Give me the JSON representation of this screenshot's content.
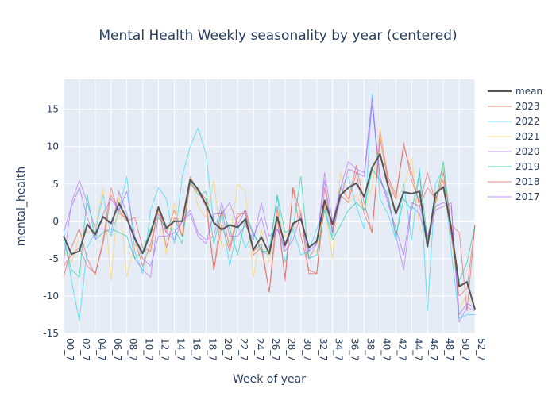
{
  "chart_data": {
    "type": "line",
    "title": "Mental Health Weekly seasonality by year (centered)",
    "xlabel": "Week of year",
    "ylabel": "mental_health",
    "ylim": [
      -15,
      19
    ],
    "yticks": [
      -15,
      -10,
      -5,
      0,
      5,
      10,
      15
    ],
    "x_tick_labels": [
      "00_7",
      "02_7",
      "04_7",
      "06_7",
      "08_7",
      "10_7",
      "12_7",
      "14_7",
      "16_7",
      "18_7",
      "20_7",
      "22_7",
      "24_7",
      "26_7",
      "28_7",
      "30_7",
      "32_7",
      "34_7",
      "36_7",
      "38_7",
      "40_7",
      "42_7",
      "44_7",
      "46_7",
      "48_7",
      "50_7",
      "52_7"
    ],
    "grid": true,
    "legend_position": "right",
    "plot_bgcolor": "#e5ecf6",
    "series": [
      {
        "name": "mean",
        "color": "#555555",
        "values": [
          -2.0,
          -4.4,
          -4.0,
          -0.4,
          -1.8,
          0.6,
          -0.3,
          2.4,
          0.4,
          -2.3,
          -4.3,
          -1.6,
          1.9,
          -0.9,
          0.0,
          0.0,
          5.6,
          4.3,
          2.3,
          -0.2,
          -1.1,
          -0.5,
          -0.8,
          0.3,
          -3.8,
          -2.1,
          -4.3,
          0.6,
          -3.2,
          -0.3,
          0.3,
          -3.5,
          -2.7,
          2.8,
          -0.4,
          3.5,
          4.5,
          5.1,
          3.3,
          7.2,
          9.0,
          4.8,
          1.0,
          3.9,
          3.7,
          4.0,
          -3.4,
          3.7,
          4.6,
          -0.9,
          -8.7,
          -8.1,
          -11.8
        ]
      },
      {
        "name": "2023",
        "color": "#ef553b",
        "values": [
          -7.5,
          -3.5,
          -1.0,
          -5.0,
          -7.2,
          -2.5,
          4.5,
          1.0,
          0.5,
          -2.5,
          -6.0,
          -3.0,
          1.5,
          -1.5,
          1.5,
          -2.0,
          6.0,
          4.0,
          3.0,
          -6.5,
          -0.5,
          -4.0,
          0.5,
          1.5,
          -4.0,
          -3.0,
          -9.5,
          0.5,
          -7.5,
          4.5,
          -2.0,
          -6.5,
          -7.0,
          4.5,
          -1.5,
          4.5,
          3.0,
          7.5,
          2.5,
          -1.5,
          12.0,
          6.0,
          3.5,
          10.0,
          6.5,
          2.0,
          4.5,
          3.0,
          5.5,
          -2.0,
          -10.0,
          -9.0,
          -0.5
        ]
      },
      {
        "name": "2022",
        "color": "#19d3f3",
        "values": [
          -1.0,
          -8.0,
          -13.3,
          -3.5,
          -1.5,
          3.5,
          -2.0,
          1.5,
          6.0,
          -4.0,
          -7.0,
          1.5,
          4.5,
          3.0,
          -3.0,
          6.0,
          10.0,
          12.5,
          9.0,
          -0.5,
          1.0,
          -6.0,
          -0.5,
          -3.5,
          -1.5,
          -4.0,
          -4.5,
          3.5,
          -5.5,
          -1.0,
          -4.5,
          -4.0,
          -1.0,
          2.0,
          -2.0,
          4.5,
          6.0,
          2.0,
          -1.0,
          17.0,
          3.0,
          1.0,
          -2.5,
          5.0,
          -2.5,
          7.0,
          -12.0,
          5.0,
          7.0,
          -4.0,
          -13.0,
          -12.5,
          -12.5
        ]
      },
      {
        "name": "2021",
        "color": "#fecb52",
        "values": [
          -4.0,
          -5.5,
          -2.0,
          -1.5,
          -1.0,
          4.5,
          -8.0,
          4.0,
          -7.5,
          -3.0,
          -5.0,
          -4.0,
          2.0,
          -4.5,
          2.5,
          -2.0,
          6.0,
          2.0,
          0.5,
          5.5,
          -3.5,
          -2.5,
          5.0,
          4.0,
          -7.5,
          -1.0,
          -5.5,
          1.5,
          -2.0,
          -1.5,
          1.5,
          -4.5,
          -4.0,
          2.0,
          -5.0,
          6.5,
          2.5,
          3.5,
          1.5,
          4.5,
          12.5,
          5.0,
          3.0,
          4.5,
          8.5,
          -1.0,
          -2.5,
          1.5,
          7.5,
          -1.0,
          -11.5,
          -10.0,
          -11.5
        ]
      },
      {
        "name": "2020",
        "color": "#ab63fa",
        "values": [
          -5.5,
          2.5,
          5.5,
          2.5,
          -1.0,
          -1.0,
          -1.5,
          4.0,
          1.0,
          -5.0,
          -6.5,
          -7.5,
          1.0,
          -1.5,
          -2.5,
          0.0,
          1.5,
          -1.5,
          -2.5,
          -2.0,
          2.5,
          -2.0,
          -2.0,
          -0.5,
          -2.5,
          2.5,
          -2.0,
          -1.0,
          -3.5,
          -0.5,
          0.5,
          -5.0,
          -3.0,
          6.5,
          0.0,
          4.5,
          8.0,
          7.0,
          6.5,
          16.5,
          5.5,
          3.0,
          -2.0,
          -6.5,
          2.0,
          1.0,
          -3.0,
          1.5,
          2.0,
          2.5,
          -13.5,
          -11.5,
          -12.0
        ]
      },
      {
        "name": "2019",
        "color": "#00cc96",
        "values": [
          -2.5,
          -6.5,
          -7.5,
          3.5,
          -2.5,
          -1.5,
          -1.0,
          -1.5,
          -2.0,
          -5.0,
          -4.0,
          -1.0,
          0.5,
          -1.0,
          -1.0,
          -3.0,
          5.5,
          3.5,
          4.0,
          -3.0,
          1.5,
          -1.0,
          -4.5,
          0.5,
          -1.5,
          -4.0,
          -4.0,
          3.5,
          -1.5,
          -1.0,
          6.0,
          -5.0,
          -4.5,
          1.5,
          -2.5,
          -0.5,
          1.5,
          2.5,
          1.5,
          7.0,
          5.5,
          3.5,
          -2.0,
          3.0,
          1.5,
          6.5,
          -2.5,
          2.5,
          8.0,
          -1.0,
          -8.0,
          -5.5,
          -0.5
        ]
      },
      {
        "name": "2018",
        "color": "#e45756",
        "values": [
          -6.0,
          -4.5,
          -3.5,
          -6.0,
          -7.0,
          -3.0,
          3.5,
          1.5,
          0.0,
          0.5,
          -3.5,
          -4.0,
          2.0,
          -3.5,
          0.5,
          -2.0,
          5.0,
          4.0,
          2.0,
          -6.5,
          1.5,
          -3.5,
          1.0,
          1.0,
          -4.5,
          -3.5,
          -9.5,
          2.0,
          -8.0,
          4.5,
          1.0,
          -7.0,
          -7.0,
          2.5,
          -1.0,
          3.5,
          2.5,
          6.5,
          1.0,
          -1.5,
          11.0,
          5.5,
          3.0,
          10.5,
          5.5,
          2.5,
          6.5,
          2.5,
          6.5,
          -0.5,
          -1.5,
          -12.0,
          -0.5
        ]
      },
      {
        "name": "2017",
        "color": "#a855f7",
        "values": [
          -1.5,
          2.0,
          4.5,
          0.5,
          -2.5,
          1.0,
          3.0,
          1.5,
          4.0,
          -2.0,
          -5.0,
          -6.0,
          -2.0,
          -2.0,
          -1.5,
          0.0,
          1.0,
          -2.0,
          -3.0,
          1.0,
          1.0,
          2.5,
          -0.5,
          1.5,
          -2.0,
          0.5,
          -3.5,
          -1.0,
          -4.0,
          -2.5,
          1.0,
          -4.0,
          -3.0,
          5.5,
          -1.5,
          3.0,
          7.0,
          6.5,
          6.0,
          15.5,
          6.0,
          2.5,
          -1.0,
          -4.5,
          2.5,
          2.0,
          -2.0,
          2.0,
          2.5,
          2.0,
          -12.5,
          -11.0,
          -11.5
        ]
      }
    ]
  }
}
